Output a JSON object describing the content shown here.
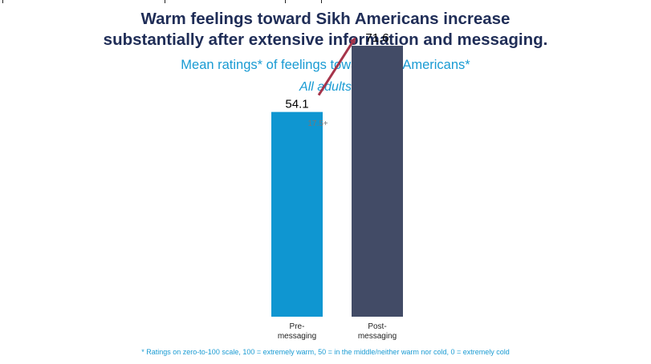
{
  "chart_data": {
    "type": "bar",
    "title_lines": [
      "Warm feelings toward Sikh Americans increase",
      "substantially after extensive information and messaging."
    ],
    "subtitle": "Mean ratings* of feelings toward Sikh Americans*",
    "subsubtitle": "All adults",
    "categories": [
      [
        "Pre-",
        "messaging"
      ],
      [
        "Post-",
        "messaging"
      ]
    ],
    "values": [
      54.1,
      71.6
    ],
    "value_labels": [
      "54.1",
      "71.6"
    ],
    "colors": [
      "#0f96d1",
      "#424b66"
    ],
    "arrow_color": "#a6344a",
    "change_label": "17.5+",
    "ylim": [
      0,
      100
    ],
    "footnote": "* Ratings on zero-to-100 scale, 100 = extremely warm, 50 = in the middle/neither warm nor cold, 0 = extremely cold"
  }
}
